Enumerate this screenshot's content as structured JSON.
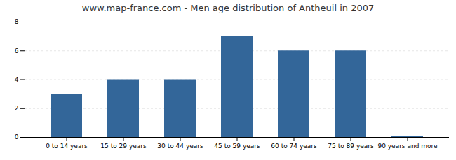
{
  "chart_data": {
    "type": "bar",
    "title": "www.map-france.com - Men age distribution of Antheuil in 2007",
    "categories": [
      "0 to 14 years",
      "15 to 29 years",
      "30 to 44 years",
      "45 to 59 years",
      "60 to 74 years",
      "75 to 89 years",
      "90 years and more"
    ],
    "values": [
      3,
      4,
      4,
      7,
      6,
      6,
      0.07
    ],
    "color": "#336699",
    "ylim": [
      0,
      8
    ],
    "yticks": [
      0,
      2,
      4,
      6,
      8
    ],
    "grid": true
  }
}
